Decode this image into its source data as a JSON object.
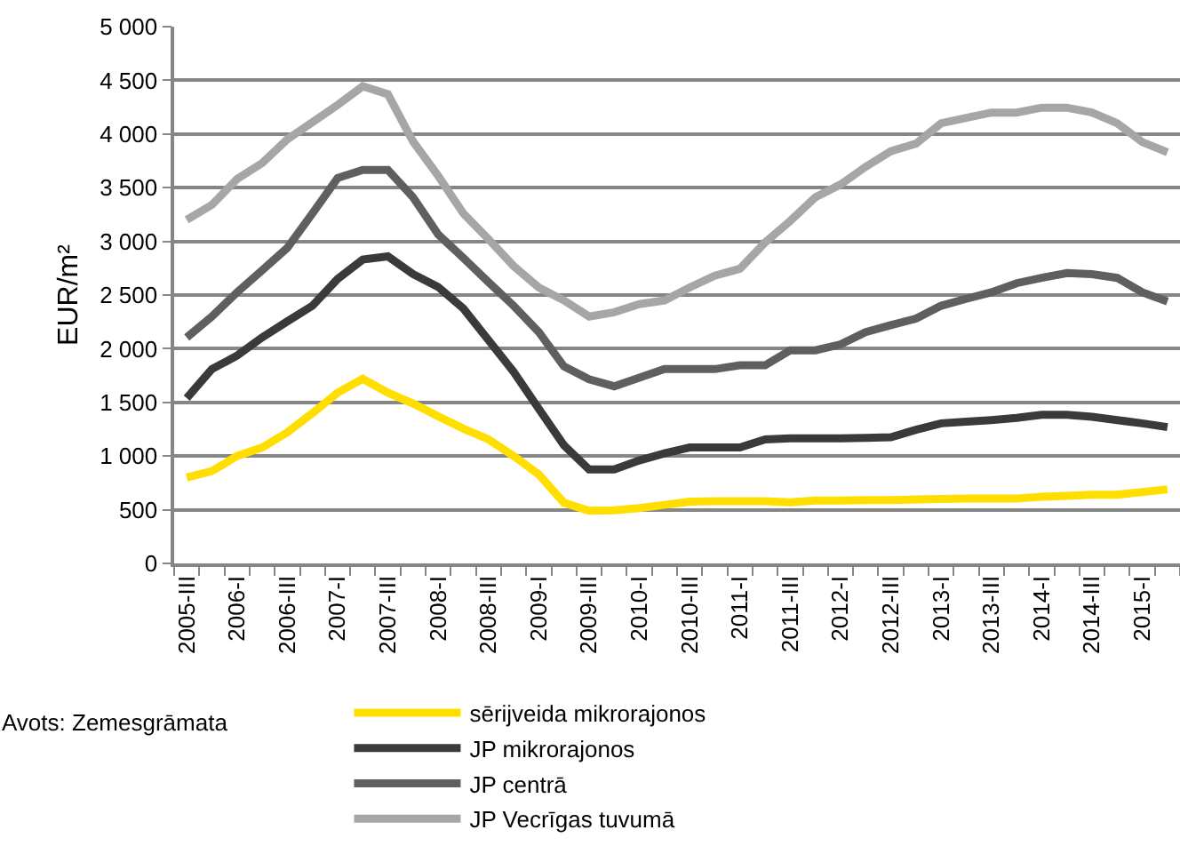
{
  "chart_data": {
    "type": "line",
    "ylabel": "EUR/m²",
    "categories": [
      "2005-III",
      null,
      "2006-I",
      null,
      "2006-III",
      null,
      "2007-I",
      null,
      "2007-III",
      null,
      "2008-I",
      null,
      "2008-III",
      null,
      "2009-I",
      null,
      "2009-III",
      null,
      "2010-I",
      null,
      "2010-III",
      null,
      "2011-I",
      null,
      "2011-III",
      null,
      "2012-I",
      null,
      "2012-III",
      null,
      "2013-I",
      null,
      "2013-III",
      null,
      "2014-I",
      null,
      "2014-III",
      null,
      "2015-I",
      null
    ],
    "series": [
      {
        "name": "sērijveida mikrorajonos",
        "color": "#ffde00",
        "values": [
          800,
          860,
          1000,
          1080,
          1220,
          1400,
          1590,
          1720,
          1590,
          1490,
          1370,
          1255,
          1155,
          1000,
          830,
          565,
          490,
          495,
          515,
          545,
          575,
          580,
          580,
          580,
          570,
          585,
          585,
          590,
          590,
          595,
          600,
          605,
          605,
          605,
          620,
          630,
          640,
          640,
          665,
          690
        ]
      },
      {
        "name": "JP mikrorajonos",
        "color": "#3a3a3a",
        "values": [
          1540,
          1810,
          1935,
          2105,
          2255,
          2400,
          2650,
          2830,
          2860,
          2695,
          2575,
          2375,
          2080,
          1785,
          1440,
          1100,
          875,
          875,
          960,
          1025,
          1080,
          1080,
          1080,
          1155,
          1165,
          1165,
          1165,
          1170,
          1175,
          1245,
          1305,
          1320,
          1335,
          1355,
          1385,
          1385,
          1365,
          1335,
          1305,
          1270
        ]
      },
      {
        "name": "JP centrā",
        "color": "#5f5f5f",
        "values": [
          2105,
          2300,
          2525,
          2730,
          2940,
          3260,
          3590,
          3665,
          3665,
          3410,
          3065,
          2845,
          2620,
          2400,
          2155,
          1835,
          1715,
          1650,
          1730,
          1810,
          1810,
          1810,
          1845,
          1845,
          1985,
          1985,
          2040,
          2155,
          2220,
          2280,
          2400,
          2465,
          2525,
          2610,
          2660,
          2705,
          2695,
          2660,
          2525,
          2440
        ]
      },
      {
        "name": "JP Vecrīgas tuvumā",
        "color": "#a6a6a6",
        "values": [
          3200,
          3340,
          3580,
          3730,
          3950,
          4110,
          4270,
          4445,
          4370,
          3930,
          3610,
          3260,
          3020,
          2770,
          2570,
          2450,
          2300,
          2340,
          2415,
          2450,
          2570,
          2680,
          2745,
          2990,
          3190,
          3410,
          3530,
          3695,
          3840,
          3910,
          4100,
          4150,
          4200,
          4200,
          4245,
          4245,
          4200,
          4100,
          3925,
          3830
        ]
      }
    ],
    "ylim": [
      0,
      5000
    ],
    "yticks": [
      0,
      500,
      {
        "value": 1000,
        "label": "1 000"
      },
      {
        "value": 1500,
        "label": "1 500"
      },
      {
        "value": 2000,
        "label": "2 000"
      },
      {
        "value": 2500,
        "label": "2 500"
      },
      {
        "value": 3000,
        "label": "3 000"
      },
      {
        "value": 3500,
        "label": "3 500"
      },
      {
        "value": 4000,
        "label": "4 000"
      },
      {
        "value": 4500,
        "label": "4 500"
      },
      {
        "value": 5000,
        "label": "5 000"
      }
    ],
    "grid": "y",
    "legend": "bottom",
    "marker": "none",
    "line_style": "solid",
    "annotations": [
      "Avots: Zemesgrāmata"
    ]
  }
}
